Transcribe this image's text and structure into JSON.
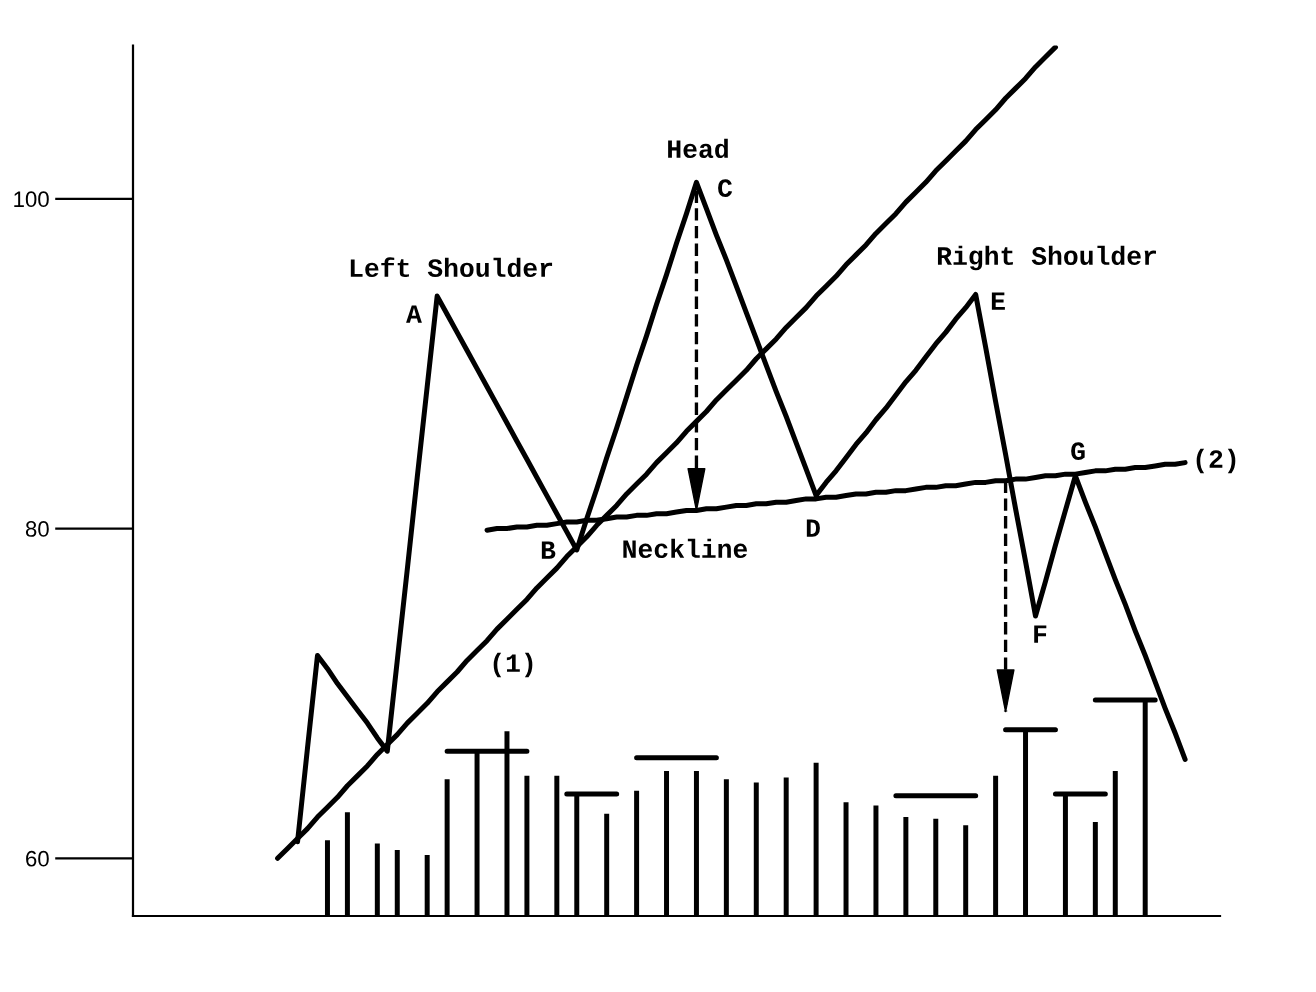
{
  "chart_data": {
    "type": "line",
    "tick_labels": "y",
    "categories": [
      null,
      null,
      null,
      null,
      null,
      null,
      null,
      null,
      null,
      null,
      null,
      null,
      null,
      null,
      null,
      null,
      null,
      null,
      null,
      null,
      null,
      null,
      null,
      null,
      null,
      null,
      null,
      null,
      null,
      null,
      null,
      null,
      null,
      null,
      null,
      null,
      null,
      null,
      null,
      null,
      null,
      null,
      null,
      null,
      null,
      null,
      null,
      null,
      null,
      null,
      null,
      null,
      null,
      null,
      null,
      null,
      null,
      null,
      null,
      null,
      null,
      null,
      null,
      null,
      null,
      null,
      null,
      null,
      null,
      null,
      null,
      null,
      null,
      null,
      null,
      null,
      null,
      null,
      null,
      null,
      null,
      null,
      null,
      null,
      null,
      null,
      null,
      null,
      null,
      null,
      null,
      null,
      null,
      null,
      null,
      null,
      null,
      null,
      null,
      null,
      null,
      null,
      null,
      null,
      null,
      null,
      null,
      null,
      null
    ],
    "ylim": [
      56.5,
      109.3
    ],
    "yticks": [
      60,
      80,
      100
    ],
    "series": [
      {
        "color": "#000000",
        "values": [
          null,
          null,
          null,
          null,
          null,
          null,
          null,
          null,
          null,
          null,
          null,
          null,
          null,
          null,
          null,
          null,
          61.0,
          66.7,
          72.3,
          71.5,
          70.6,
          69.8,
          69.0,
          68.2,
          67.3,
          66.5,
          72.0,
          77.5,
          83.1,
          88.6,
          94.1,
          93.0,
          91.9,
          90.8,
          89.7,
          88.6,
          87.5,
          86.4,
          85.3,
          84.2,
          83.1,
          82.0,
          80.9,
          79.8,
          78.7,
          80.6,
          82.4,
          84.3,
          86.1,
          88.0,
          89.9,
          91.7,
          93.6,
          95.4,
          97.3,
          99.1,
          101.0,
          99.4,
          97.8,
          96.3,
          94.7,
          93.1,
          91.5,
          89.9,
          88.3,
          86.8,
          85.2,
          83.6,
          82.0,
          82.8,
          83.5,
          84.3,
          85.1,
          85.8,
          86.6,
          87.3,
          88.1,
          88.9,
          89.6,
          90.4,
          91.2,
          91.9,
          92.7,
          93.4,
          94.2,
          91.0,
          87.7,
          84.5,
          81.2,
          78.0,
          74.7,
          76.8,
          79.0,
          81.1,
          83.2,
          81.6,
          80.1,
          78.5,
          76.9,
          75.4,
          73.8,
          72.3,
          70.7,
          69.1,
          67.6,
          66.0,
          null,
          null,
          null
        ]
      },
      {
        "color": "#000000",
        "values": [
          null,
          null,
          null,
          null,
          null,
          null,
          null,
          null,
          null,
          null,
          null,
          null,
          null,
          null,
          60.0,
          60.6,
          61.2,
          61.8,
          62.5,
          63.1,
          63.7,
          64.4,
          65.0,
          65.6,
          66.3,
          66.9,
          67.5,
          68.2,
          68.8,
          69.4,
          70.1,
          70.7,
          71.3,
          72.0,
          72.6,
          73.2,
          73.9,
          74.5,
          75.1,
          75.7,
          76.4,
          77.0,
          77.6,
          78.3,
          78.9,
          79.5,
          80.2,
          80.8,
          81.4,
          82.1,
          82.7,
          83.3,
          84.0,
          84.6,
          85.2,
          85.9,
          86.5,
          87.1,
          87.8,
          88.4,
          89.0,
          89.6,
          90.3,
          90.9,
          91.5,
          92.2,
          92.8,
          93.4,
          94.1,
          94.7,
          95.3,
          96.0,
          96.6,
          97.2,
          97.9,
          98.5,
          99.1,
          99.8,
          100.4,
          101.0,
          101.7,
          102.3,
          102.9,
          103.5,
          104.2,
          104.8,
          105.4,
          106.1,
          106.7,
          107.3,
          108.0,
          108.6,
          109.2,
          null,
          null,
          null,
          null,
          null,
          null,
          null,
          null,
          null,
          null,
          null,
          null,
          null,
          null,
          null,
          null
        ]
      },
      {
        "color": "#000000",
        "values": [
          null,
          null,
          null,
          null,
          null,
          null,
          null,
          null,
          null,
          null,
          null,
          null,
          null,
          null,
          null,
          null,
          null,
          null,
          null,
          null,
          null,
          null,
          null,
          null,
          null,
          null,
          null,
          null,
          null,
          null,
          null,
          null,
          null,
          null,
          null,
          79.9,
          80.0,
          80.0,
          80.1,
          80.1,
          80.2,
          80.2,
          80.3,
          80.4,
          80.4,
          80.5,
          80.5,
          80.6,
          80.7,
          80.7,
          80.8,
          80.8,
          80.9,
          80.9,
          81.0,
          81.1,
          81.1,
          81.2,
          81.2,
          81.3,
          81.4,
          81.4,
          81.5,
          81.5,
          81.6,
          81.6,
          81.7,
          81.8,
          81.8,
          81.9,
          81.9,
          82.0,
          82.1,
          82.1,
          82.2,
          82.2,
          82.3,
          82.3,
          82.4,
          82.5,
          82.5,
          82.6,
          82.6,
          82.7,
          82.8,
          82.8,
          82.9,
          82.9,
          83.0,
          83.0,
          83.1,
          83.2,
          83.2,
          83.3,
          83.3,
          83.4,
          83.5,
          83.5,
          83.6,
          83.6,
          83.7,
          83.7,
          83.8,
          83.9,
          83.9,
          84.0,
          null,
          null,
          null
        ],
        "errors": [
          null,
          null,
          null,
          null,
          null,
          null,
          null,
          null,
          null,
          null,
          null,
          null,
          null,
          null,
          null,
          null,
          null,
          null,
          null,
          null,
          null,
          null,
          null,
          null,
          null,
          null,
          null,
          null,
          null,
          null,
          null,
          null,
          null,
          null,
          null,
          null,
          null,
          null,
          null,
          null,
          null,
          null,
          null,
          null,
          null,
          null,
          null,
          null,
          null,
          null,
          null,
          null,
          null,
          null,
          null,
          null,
          [
            81.1,
            100.5
          ],
          null,
          null,
          null,
          null,
          null,
          null,
          null,
          null,
          null,
          null,
          null,
          null,
          null,
          null,
          null,
          null,
          null,
          null,
          null,
          null,
          null,
          null,
          null,
          null,
          null,
          null,
          null,
          null,
          null,
          null,
          [
            68.9,
            82.9
          ],
          null,
          null,
          null,
          null,
          null,
          null,
          null,
          null,
          null,
          null,
          null,
          null,
          null,
          null,
          null,
          null,
          null,
          null,
          null,
          null,
          null
        ]
      },
      {
        "type": "bar",
        "color": "#000000",
        "values": [
          null,
          null,
          null,
          null,
          null,
          null,
          null,
          null,
          null,
          null,
          null,
          null,
          null,
          null,
          null,
          null,
          null,
          null,
          null,
          61.1,
          null,
          62.8,
          null,
          null,
          60.9,
          null,
          60.5,
          null,
          null,
          60.2,
          null,
          64.8,
          null,
          null,
          66.4,
          null,
          null,
          67.7,
          null,
          65.0,
          null,
          null,
          65.0,
          null,
          63.9,
          null,
          null,
          62.7,
          null,
          null,
          64.1,
          null,
          null,
          65.3,
          null,
          null,
          65.3,
          null,
          null,
          64.8,
          null,
          null,
          64.6,
          null,
          null,
          64.9,
          null,
          null,
          65.8,
          null,
          null,
          63.4,
          null,
          null,
          63.2,
          null,
          null,
          62.5,
          null,
          null,
          62.4,
          null,
          null,
          62.0,
          null,
          null,
          65.0,
          null,
          null,
          67.8,
          null,
          null,
          null,
          63.9,
          null,
          null,
          62.2,
          null,
          65.3,
          null,
          null,
          69.6,
          null,
          null,
          null,
          null,
          null,
          null,
          null
        ]
      },
      {
        "color": "#000000",
        "values": [
          null,
          null,
          null,
          null,
          null,
          null,
          null,
          null,
          null,
          null,
          null,
          null,
          null,
          null,
          null,
          null,
          null,
          null,
          null,
          null,
          null,
          null,
          null,
          null,
          null,
          null,
          null,
          null,
          null,
          null,
          null,
          66.5,
          66.5,
          66.5,
          66.5,
          66.5,
          66.5,
          66.5,
          66.5,
          66.5,
          null,
          null,
          null,
          63.9,
          63.9,
          63.9,
          63.9,
          63.9,
          63.9,
          null,
          66.1,
          66.1,
          66.1,
          66.1,
          66.1,
          66.1,
          66.1,
          66.1,
          66.1,
          null,
          null,
          null,
          null,
          null,
          null,
          null,
          null,
          null,
          null,
          null,
          null,
          null,
          null,
          null,
          null,
          null,
          63.8,
          63.8,
          63.8,
          63.8,
          63.8,
          63.8,
          63.8,
          63.8,
          63.8,
          null,
          null,
          67.8,
          67.8,
          67.8,
          67.8,
          67.8,
          67.8,
          null,
          null,
          null,
          69.6,
          69.6,
          69.6,
          69.6,
          69.6,
          69.6,
          69.6,
          null,
          null,
          null,
          null,
          null,
          null
        ]
      },
      {
        "color": "#000000",
        "values": [
          null,
          null,
          null,
          null,
          null,
          null,
          null,
          null,
          null,
          null,
          null,
          null,
          null,
          null,
          null,
          null,
          null,
          null,
          null,
          null,
          null,
          null,
          null,
          null,
          null,
          null,
          null,
          null,
          null,
          null,
          null,
          null,
          null,
          null,
          null,
          null,
          null,
          null,
          null,
          null,
          null,
          null,
          null,
          null,
          null,
          null,
          null,
          null,
          null,
          null,
          null,
          null,
          null,
          null,
          null,
          null,
          null,
          null,
          null,
          null,
          null,
          null,
          null,
          null,
          null,
          null,
          null,
          null,
          null,
          null,
          null,
          null,
          null,
          null,
          null,
          null,
          null,
          null,
          null,
          null,
          null,
          null,
          null,
          null,
          null,
          null,
          null,
          null,
          null,
          null,
          null,
          null,
          63.9,
          63.9,
          63.9,
          63.9,
          63.9,
          63.9,
          null,
          null,
          null,
          null,
          null,
          null,
          null,
          null,
          null,
          null,
          null
        ]
      }
    ],
    "annotations": [
      "Left Shoulder",
      "A",
      "Head",
      "C",
      "Right Shoulder",
      "E",
      "B",
      "Neckline",
      "D",
      "G",
      "F",
      "(1)",
      "(2)"
    ]
  }
}
